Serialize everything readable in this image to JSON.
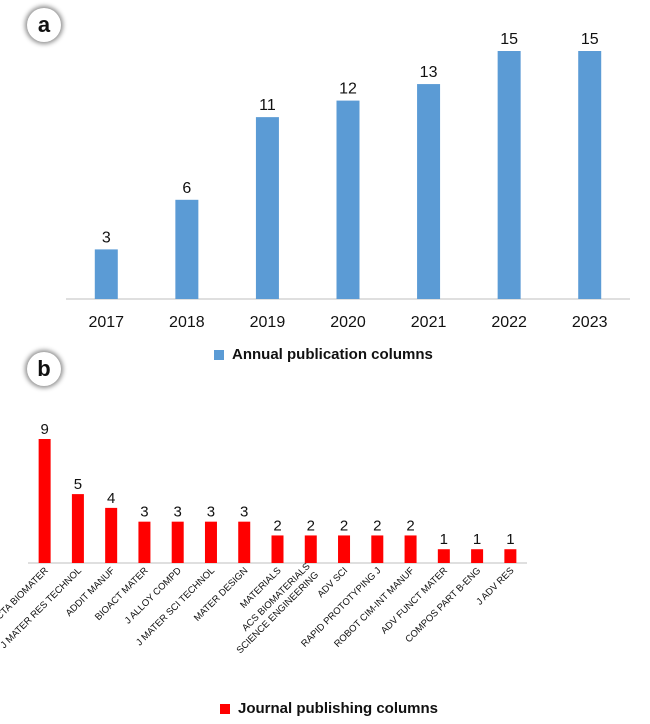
{
  "panels": {
    "a_label": "a",
    "b_label": "b"
  },
  "chart_data": [
    {
      "type": "bar",
      "categories": [
        "2017",
        "2018",
        "2019",
        "2020",
        "2021",
        "2022",
        "2023"
      ],
      "values": [
        3,
        6,
        11,
        12,
        13,
        15,
        15
      ],
      "series": [
        {
          "name": "Annual publication columns",
          "values": [
            3,
            6,
            11,
            12,
            13,
            15,
            15
          ]
        }
      ],
      "ylim": [
        0,
        15
      ],
      "color": "#5b9bd5",
      "legend": "bottom-center",
      "grid": false
    },
    {
      "type": "bar",
      "categories": [
        "ACTA BIOMATER",
        "J MATER RES TECHNOL",
        "ADDIT MANUF",
        "BIOACT MATER",
        "J ALLOY COMPD",
        "J MATER SCI TECHNOL",
        "MATER DESIGN",
        "MATERIALS",
        "ACS BIOMATERIALS SCIENCE ENGINEERING",
        "ADV SCI",
        "RAPID PROTOTYPING J",
        "ROBOT CIM-INT MANUF",
        "ADV FUNCT MATER",
        "COMPOS PART B-ENG",
        "J ADV RES"
      ],
      "values": [
        9,
        5,
        4,
        3,
        3,
        3,
        3,
        2,
        2,
        2,
        2,
        2,
        1,
        1,
        1
      ],
      "series": [
        {
          "name": "Journal publishing columns",
          "values": [
            9,
            5,
            4,
            3,
            3,
            3,
            3,
            2,
            2,
            2,
            2,
            2,
            1,
            1,
            1
          ]
        }
      ],
      "ylim": [
        0,
        9
      ],
      "color": "#ff0000",
      "legend": "bottom-center",
      "grid": false
    }
  ]
}
